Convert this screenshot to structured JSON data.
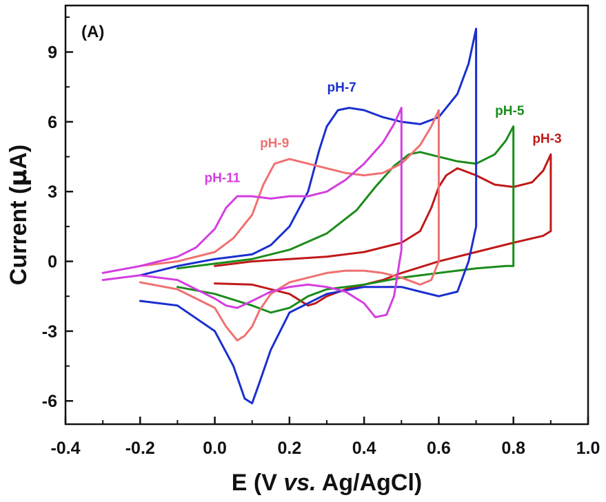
{
  "chart_data": {
    "type": "line",
    "panel_label": "(A)",
    "title": "",
    "xlabel": {
      "prefix": "E (V ",
      "italic": "vs.",
      "suffix": " Ag/AgCl)"
    },
    "ylabel": {
      "prefix": "Current (",
      "greek": "μ",
      "suffix": "A)"
    },
    "xlim": [
      -0.4,
      1.0
    ],
    "ylim": [
      -7,
      11
    ],
    "xticks": [
      -0.4,
      -0.2,
      0.0,
      0.2,
      0.4,
      0.6,
      0.8,
      1.0
    ],
    "xtick_labels": [
      "-0.4",
      "-0.2",
      "0.0",
      "0.2",
      "0.4",
      "0.6",
      "0.8",
      "1.0"
    ],
    "yticks": [
      -6,
      -3,
      0,
      3,
      6,
      9
    ],
    "ytick_labels": [
      "-6",
      "-3",
      "0",
      "3",
      "6",
      "9"
    ],
    "grid": false,
    "series": [
      {
        "name": "pH-3",
        "color": "#c01818",
        "label_at": [
          0.89,
          5.1
        ],
        "x": [
          0.0,
          0.1,
          0.2,
          0.3,
          0.4,
          0.5,
          0.55,
          0.58,
          0.6,
          0.62,
          0.65,
          0.7,
          0.75,
          0.8,
          0.85,
          0.88,
          0.9,
          0.9,
          0.88,
          0.8,
          0.7,
          0.6,
          0.5,
          0.45,
          0.4,
          0.35,
          0.3,
          0.27,
          0.25,
          0.2,
          0.1,
          0.0
        ],
        "y": [
          -0.2,
          0.0,
          0.1,
          0.2,
          0.4,
          0.8,
          1.3,
          2.3,
          3.2,
          3.7,
          4.0,
          3.7,
          3.3,
          3.2,
          3.4,
          3.9,
          4.6,
          1.3,
          1.1,
          0.8,
          0.4,
          0.0,
          -0.5,
          -0.8,
          -1.0,
          -1.2,
          -1.5,
          -1.8,
          -1.9,
          -1.4,
          -1.0,
          -0.95
        ]
      },
      {
        "name": "pH-5",
        "color": "#1a8c1a",
        "label_at": [
          0.79,
          6.3
        ],
        "x": [
          -0.1,
          0.0,
          0.1,
          0.2,
          0.3,
          0.38,
          0.43,
          0.48,
          0.52,
          0.55,
          0.6,
          0.65,
          0.7,
          0.75,
          0.78,
          0.8,
          0.8,
          0.78,
          0.7,
          0.6,
          0.5,
          0.4,
          0.3,
          0.25,
          0.2,
          0.15,
          0.1,
          0.0,
          -0.1
        ],
        "y": [
          -0.3,
          -0.1,
          0.1,
          0.5,
          1.2,
          2.2,
          3.2,
          4.1,
          4.6,
          4.7,
          4.5,
          4.3,
          4.2,
          4.6,
          5.2,
          5.8,
          -0.2,
          -0.2,
          -0.3,
          -0.5,
          -0.7,
          -1.0,
          -1.2,
          -1.5,
          -2.0,
          -2.2,
          -1.9,
          -1.4,
          -1.1
        ]
      },
      {
        "name": "pH-7",
        "color": "#1a2fd0",
        "label_at": [
          0.34,
          7.3
        ],
        "x": [
          -0.2,
          -0.1,
          0.0,
          0.1,
          0.15,
          0.2,
          0.25,
          0.28,
          0.3,
          0.33,
          0.36,
          0.4,
          0.45,
          0.5,
          0.55,
          0.6,
          0.65,
          0.68,
          0.7,
          0.7,
          0.68,
          0.65,
          0.6,
          0.55,
          0.5,
          0.4,
          0.3,
          0.2,
          0.15,
          0.12,
          0.1,
          0.08,
          0.05,
          0.0,
          -0.1,
          -0.2
        ],
        "y": [
          -0.6,
          -0.2,
          0.1,
          0.3,
          0.7,
          1.5,
          3.0,
          4.8,
          5.8,
          6.5,
          6.6,
          6.5,
          6.2,
          6.0,
          5.9,
          6.2,
          7.2,
          8.5,
          10.0,
          1.5,
          0.0,
          -1.3,
          -1.5,
          -1.3,
          -1.1,
          -1.1,
          -1.4,
          -2.2,
          -3.8,
          -5.2,
          -6.1,
          -5.9,
          -4.5,
          -3.0,
          -1.9,
          -1.7
        ]
      },
      {
        "name": "pH-9",
        "color": "#f07070",
        "label_at": [
          0.16,
          4.9
        ],
        "x": [
          -0.2,
          -0.1,
          0.0,
          0.05,
          0.1,
          0.13,
          0.16,
          0.2,
          0.25,
          0.3,
          0.35,
          0.4,
          0.45,
          0.5,
          0.55,
          0.58,
          0.6,
          0.6,
          0.58,
          0.55,
          0.5,
          0.45,
          0.4,
          0.35,
          0.3,
          0.25,
          0.2,
          0.15,
          0.12,
          0.1,
          0.08,
          0.06,
          0.03,
          0.0,
          -0.1,
          -0.2
        ],
        "y": [
          -0.2,
          0.0,
          0.4,
          1.0,
          2.0,
          3.3,
          4.2,
          4.4,
          4.2,
          4.0,
          3.8,
          3.7,
          3.8,
          4.2,
          5.0,
          5.8,
          6.5,
          0.0,
          -0.8,
          -1.0,
          -0.7,
          -0.5,
          -0.4,
          -0.4,
          -0.5,
          -0.7,
          -0.9,
          -1.4,
          -2.1,
          -2.8,
          -3.2,
          -3.4,
          -2.8,
          -2.0,
          -1.2,
          -0.9
        ]
      },
      {
        "name": "pH-11",
        "color": "#d43ee0",
        "label_at": [
          0.02,
          3.4
        ],
        "x": [
          -0.3,
          -0.2,
          -0.1,
          -0.05,
          0.0,
          0.03,
          0.06,
          0.1,
          0.15,
          0.2,
          0.25,
          0.3,
          0.35,
          0.4,
          0.45,
          0.48,
          0.5,
          0.5,
          0.48,
          0.46,
          0.43,
          0.4,
          0.35,
          0.3,
          0.25,
          0.2,
          0.15,
          0.1,
          0.06,
          0.03,
          0.0,
          -0.05,
          -0.1,
          -0.2,
          -0.3
        ],
        "y": [
          -0.5,
          -0.2,
          0.2,
          0.6,
          1.4,
          2.3,
          2.8,
          2.8,
          2.7,
          2.8,
          2.8,
          3.0,
          3.5,
          4.2,
          5.1,
          5.9,
          6.6,
          0.5,
          -1.5,
          -2.3,
          -2.4,
          -1.8,
          -1.3,
          -1.1,
          -1.0,
          -1.1,
          -1.3,
          -1.7,
          -2.0,
          -1.9,
          -1.6,
          -1.2,
          -0.8,
          -0.6,
          -0.8
        ]
      }
    ]
  }
}
